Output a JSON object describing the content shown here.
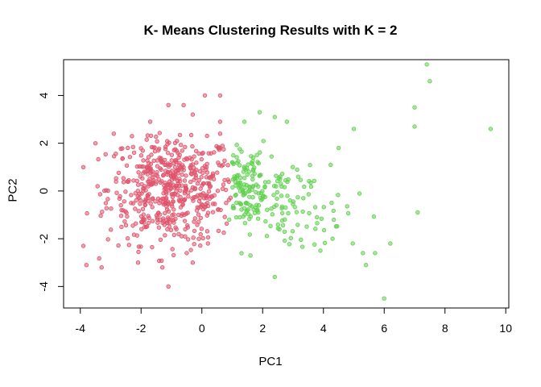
{
  "chart_data": {
    "type": "scatter",
    "title": "K- Means Clustering Results with K = 2",
    "xlabel": "PC1",
    "ylabel": "PC2",
    "xlim": [
      -4.55,
      10.1
    ],
    "ylim": [
      -4.9,
      5.5
    ],
    "x_ticks": [
      -4,
      -2,
      0,
      2,
      4,
      6,
      8,
      10
    ],
    "y_ticks": [
      -4,
      -2,
      0,
      2,
      4
    ],
    "grid": false,
    "legend": "none",
    "series": [
      {
        "color": "#DF536B",
        "cluster_center": [
          -1.0,
          0.1
        ],
        "points": [
          [
            0.1,
            4.0
          ],
          [
            0.6,
            4.0
          ],
          [
            -1.1,
            3.6
          ],
          [
            -0.6,
            3.6
          ],
          [
            -1.7,
            2.9
          ],
          [
            -0.3,
            3.2
          ],
          [
            0.6,
            2.9
          ],
          [
            -3.9,
            1.0
          ],
          [
            -3.5,
            2.0
          ],
          [
            -2.9,
            2.4
          ],
          [
            -2.3,
            2.3
          ],
          [
            0.6,
            2.4
          ],
          [
            -3.9,
            -2.3
          ],
          [
            -3.8,
            -3.1
          ],
          [
            -3.3,
            -3.2
          ],
          [
            -1.1,
            -4.0
          ],
          [
            -2.1,
            -3.0
          ],
          [
            -1.3,
            -3.2
          ],
          [
            -0.5,
            -2.6
          ],
          [
            -0.3,
            -3.0
          ],
          [
            0.2,
            -2.2
          ],
          [
            0.7,
            1.1
          ],
          [
            0.8,
            -0.5
          ]
        ],
        "count": 560
      },
      {
        "color": "#61D04F",
        "points": [
          [
            7.4,
            5.3
          ],
          [
            7.5,
            4.6
          ],
          [
            7.0,
            3.5
          ],
          [
            7.0,
            2.7
          ],
          [
            9.5,
            2.6
          ],
          [
            5.0,
            2.6
          ],
          [
            2.4,
            3.1
          ],
          [
            1.9,
            3.3
          ],
          [
            1.4,
            2.9
          ],
          [
            2.8,
            2.9
          ],
          [
            4.5,
            1.8
          ],
          [
            6.2,
            -2.2
          ],
          [
            5.7,
            -2.6
          ],
          [
            6.0,
            -4.5
          ],
          [
            2.4,
            -3.6
          ],
          [
            1.6,
            -2.7
          ],
          [
            3.9,
            -2.5
          ],
          [
            5.3,
            -2.6
          ],
          [
            5.4,
            -3.1
          ],
          [
            7.1,
            -0.9
          ],
          [
            4.3,
            -2.0
          ],
          [
            0.9,
            -1.2
          ],
          [
            1.0,
            1.2
          ]
        ],
        "count": 240
      }
    ]
  }
}
